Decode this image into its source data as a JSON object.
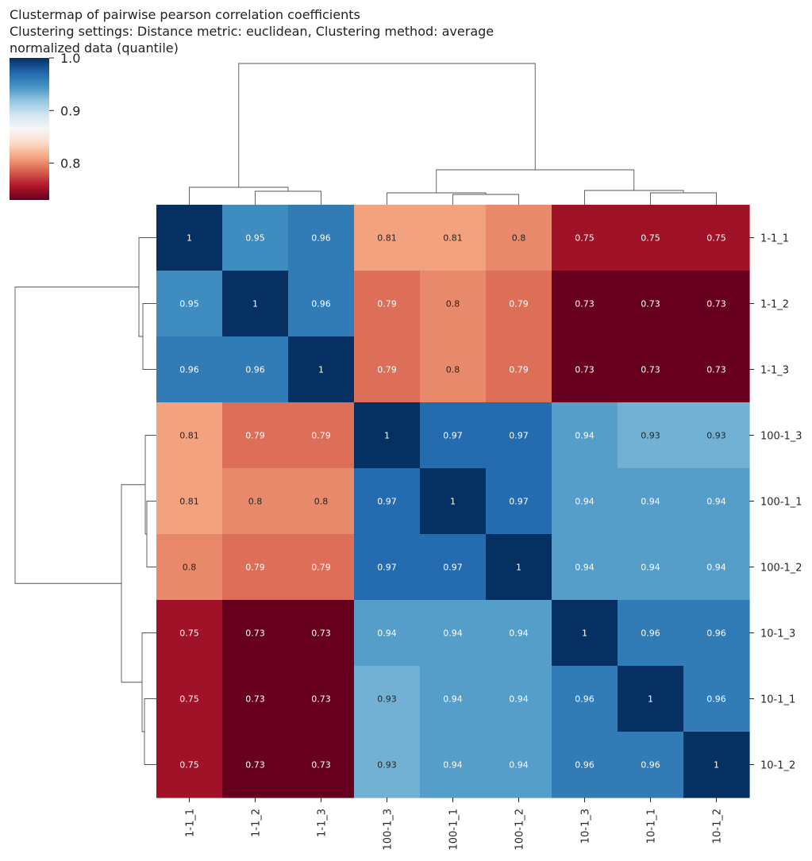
{
  "title_lines": [
    "Clustermap of pairwise pearson correlation coefficients",
    "Clustering settings: Distance metric: euclidean, Clustering method: average",
    "normalized data (quantile)"
  ],
  "chart_data": {
    "type": "heatmap",
    "row_labels": [
      "1-1_1",
      "1-1_2",
      "1-1_3",
      "100-1_3",
      "100-1_1",
      "100-1_2",
      "10-1_3",
      "10-1_1",
      "10-1_2"
    ],
    "col_labels": [
      "1-1_1",
      "1-1_2",
      "1-1_3",
      "100-1_3",
      "100-1_1",
      "100-1_2",
      "10-1_3",
      "10-1_1",
      "10-1_2"
    ],
    "annotation_text": [
      [
        "1",
        "0.95",
        "0.96",
        "0.81",
        "0.81",
        "0.8",
        "0.75",
        "0.75",
        "0.75"
      ],
      [
        "0.95",
        "1",
        "0.96",
        "0.79",
        "0.8",
        "0.79",
        "0.73",
        "0.73",
        "0.73"
      ],
      [
        "0.96",
        "0.96",
        "1",
        "0.79",
        "0.8",
        "0.79",
        "0.73",
        "0.73",
        "0.73"
      ],
      [
        "0.81",
        "0.79",
        "0.79",
        "1",
        "0.97",
        "0.97",
        "0.94",
        "0.93",
        "0.93"
      ],
      [
        "0.81",
        "0.8",
        "0.8",
        "0.97",
        "1",
        "0.97",
        "0.94",
        "0.94",
        "0.94"
      ],
      [
        "0.8",
        "0.79",
        "0.79",
        "0.97",
        "0.97",
        "1",
        "0.94",
        "0.94",
        "0.94"
      ],
      [
        "0.75",
        "0.73",
        "0.73",
        "0.94",
        "0.94",
        "0.94",
        "1",
        "0.96",
        "0.96"
      ],
      [
        "0.75",
        "0.73",
        "0.73",
        "0.93",
        "0.94",
        "0.94",
        "0.96",
        "1",
        "0.96"
      ],
      [
        "0.75",
        "0.73",
        "0.73",
        "0.93",
        "0.94",
        "0.94",
        "0.96",
        "0.96",
        "1"
      ]
    ],
    "values": [
      [
        1.0,
        0.95,
        0.96,
        0.81,
        0.81,
        0.8,
        0.75,
        0.75,
        0.75
      ],
      [
        0.95,
        1.0,
        0.96,
        0.79,
        0.8,
        0.79,
        0.73,
        0.73,
        0.73
      ],
      [
        0.96,
        0.96,
        1.0,
        0.79,
        0.8,
        0.79,
        0.73,
        0.73,
        0.73
      ],
      [
        0.81,
        0.79,
        0.79,
        1.0,
        0.97,
        0.97,
        0.94,
        0.93,
        0.93
      ],
      [
        0.81,
        0.8,
        0.8,
        0.97,
        1.0,
        0.97,
        0.94,
        0.94,
        0.94
      ],
      [
        0.8,
        0.79,
        0.79,
        0.97,
        0.97,
        1.0,
        0.94,
        0.94,
        0.94
      ],
      [
        0.75,
        0.73,
        0.73,
        0.94,
        0.94,
        0.94,
        1.0,
        0.96,
        0.96
      ],
      [
        0.75,
        0.73,
        0.73,
        0.93,
        0.94,
        0.94,
        0.96,
        1.0,
        0.96
      ],
      [
        0.75,
        0.73,
        0.73,
        0.93,
        0.94,
        0.94,
        0.96,
        0.96,
        1.0
      ]
    ],
    "colormap": "RdBu",
    "colorbar": {
      "range": [
        0.73,
        1.0
      ],
      "ticks": [
        0.8,
        0.9,
        1.0
      ],
      "tick_labels": [
        "0.8",
        "0.9",
        "1.0"
      ],
      "placement": "top-left"
    },
    "row_dendrogram": "left",
    "col_dendrogram": "top",
    "grid": false
  }
}
